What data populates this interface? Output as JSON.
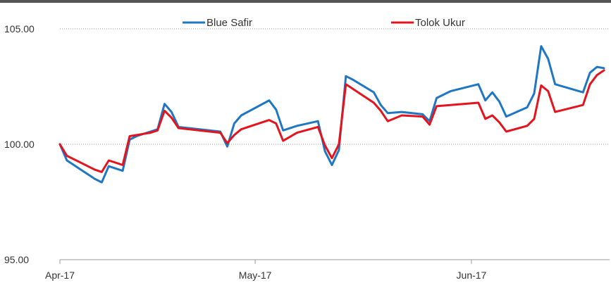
{
  "chart_data": {
    "type": "line",
    "title": "",
    "xlabel": "",
    "ylabel": "",
    "ylim": [
      95,
      105
    ],
    "yticks": [
      "105.00",
      "100.00",
      "95.00"
    ],
    "ytick_values": [
      105,
      100,
      95
    ],
    "xticks": [
      "Apr-17",
      "May-17",
      "Jun-17"
    ],
    "xtick_values": [
      "2017-04-03",
      "2017-05-01",
      "2017-06-01"
    ],
    "grid": "horizontal-dotted",
    "legend": "top-center",
    "series": [
      {
        "name": "Blue Safir",
        "color": "#1f77c4",
        "points": [
          [
            "2017-04-03",
            100.0
          ],
          [
            "2017-04-04",
            99.3
          ],
          [
            "2017-04-05",
            99.1
          ],
          [
            "2017-04-06",
            98.9
          ],
          [
            "2017-04-07",
            98.7
          ],
          [
            "2017-04-08",
            98.5
          ],
          [
            "2017-04-09",
            98.35
          ],
          [
            "2017-04-10",
            99.05
          ],
          [
            "2017-04-11",
            98.95
          ],
          [
            "2017-04-12",
            98.85
          ],
          [
            "2017-04-13",
            100.2
          ],
          [
            "2017-04-14",
            100.35
          ],
          [
            "2017-04-15",
            100.45
          ],
          [
            "2017-04-16",
            100.55
          ],
          [
            "2017-04-17",
            100.65
          ],
          [
            "2017-04-18",
            101.75
          ],
          [
            "2017-04-19",
            101.4
          ],
          [
            "2017-04-20",
            100.75
          ],
          [
            "2017-04-26",
            100.55
          ],
          [
            "2017-04-27",
            99.9
          ],
          [
            "2017-04-28",
            100.9
          ],
          [
            "2017-04-29",
            101.25
          ],
          [
            "2017-05-03",
            101.9
          ],
          [
            "2017-05-04",
            101.5
          ],
          [
            "2017-05-05",
            100.6
          ],
          [
            "2017-05-07",
            100.8
          ],
          [
            "2017-05-10",
            101.0
          ],
          [
            "2017-05-11",
            99.7
          ],
          [
            "2017-05-12",
            99.1
          ],
          [
            "2017-05-13",
            99.75
          ],
          [
            "2017-05-14",
            102.95
          ],
          [
            "2017-05-15",
            102.8
          ],
          [
            "2017-05-18",
            102.25
          ],
          [
            "2017-05-19",
            101.7
          ],
          [
            "2017-05-20",
            101.35
          ],
          [
            "2017-05-22",
            101.4
          ],
          [
            "2017-05-25",
            101.3
          ],
          [
            "2017-05-26",
            101.0
          ],
          [
            "2017-05-27",
            102.0
          ],
          [
            "2017-05-29",
            102.3
          ],
          [
            "2017-06-02",
            102.6
          ],
          [
            "2017-06-03",
            101.9
          ],
          [
            "2017-06-04",
            102.25
          ],
          [
            "2017-06-05",
            101.85
          ],
          [
            "2017-06-06",
            101.2
          ],
          [
            "2017-06-09",
            101.6
          ],
          [
            "2017-06-10",
            102.2
          ],
          [
            "2017-06-11",
            104.25
          ],
          [
            "2017-06-12",
            103.7
          ],
          [
            "2017-06-13",
            102.6
          ],
          [
            "2017-06-17",
            102.25
          ],
          [
            "2017-06-18",
            103.1
          ],
          [
            "2017-06-19",
            103.35
          ],
          [
            "2017-06-20",
            103.3
          ]
        ]
      },
      {
        "name": "Tolok Ukur",
        "color": "#e4141e",
        "points": [
          [
            "2017-04-03",
            100.0
          ],
          [
            "2017-04-04",
            99.5
          ],
          [
            "2017-04-05",
            99.35
          ],
          [
            "2017-04-06",
            99.2
          ],
          [
            "2017-04-07",
            99.05
          ],
          [
            "2017-04-08",
            98.9
          ],
          [
            "2017-04-09",
            98.8
          ],
          [
            "2017-04-10",
            99.3
          ],
          [
            "2017-04-11",
            99.2
          ],
          [
            "2017-04-12",
            99.1
          ],
          [
            "2017-04-13",
            100.35
          ],
          [
            "2017-04-14",
            100.4
          ],
          [
            "2017-04-15",
            100.45
          ],
          [
            "2017-04-16",
            100.5
          ],
          [
            "2017-04-17",
            100.6
          ],
          [
            "2017-04-18",
            101.45
          ],
          [
            "2017-04-19",
            101.15
          ],
          [
            "2017-04-20",
            100.7
          ],
          [
            "2017-04-26",
            100.5
          ],
          [
            "2017-04-27",
            100.05
          ],
          [
            "2017-04-28",
            100.4
          ],
          [
            "2017-04-29",
            100.65
          ],
          [
            "2017-05-03",
            101.05
          ],
          [
            "2017-05-04",
            100.9
          ],
          [
            "2017-05-05",
            100.15
          ],
          [
            "2017-05-07",
            100.5
          ],
          [
            "2017-05-10",
            100.75
          ],
          [
            "2017-05-11",
            99.95
          ],
          [
            "2017-05-12",
            99.4
          ],
          [
            "2017-05-13",
            100.0
          ],
          [
            "2017-05-14",
            102.6
          ],
          [
            "2017-05-15",
            102.4
          ],
          [
            "2017-05-18",
            101.8
          ],
          [
            "2017-05-19",
            101.45
          ],
          [
            "2017-05-20",
            101.0
          ],
          [
            "2017-05-22",
            101.25
          ],
          [
            "2017-05-25",
            101.2
          ],
          [
            "2017-05-26",
            100.85
          ],
          [
            "2017-05-27",
            101.65
          ],
          [
            "2017-05-29",
            101.7
          ],
          [
            "2017-06-02",
            101.8
          ],
          [
            "2017-06-03",
            101.1
          ],
          [
            "2017-06-04",
            101.25
          ],
          [
            "2017-06-05",
            100.95
          ],
          [
            "2017-06-06",
            100.55
          ],
          [
            "2017-06-09",
            100.8
          ],
          [
            "2017-06-10",
            101.1
          ],
          [
            "2017-06-11",
            102.55
          ],
          [
            "2017-06-12",
            102.3
          ],
          [
            "2017-06-13",
            101.4
          ],
          [
            "2017-06-17",
            101.7
          ],
          [
            "2017-06-18",
            102.6
          ],
          [
            "2017-06-19",
            103.0
          ],
          [
            "2017-06-20",
            103.2
          ]
        ]
      }
    ]
  }
}
